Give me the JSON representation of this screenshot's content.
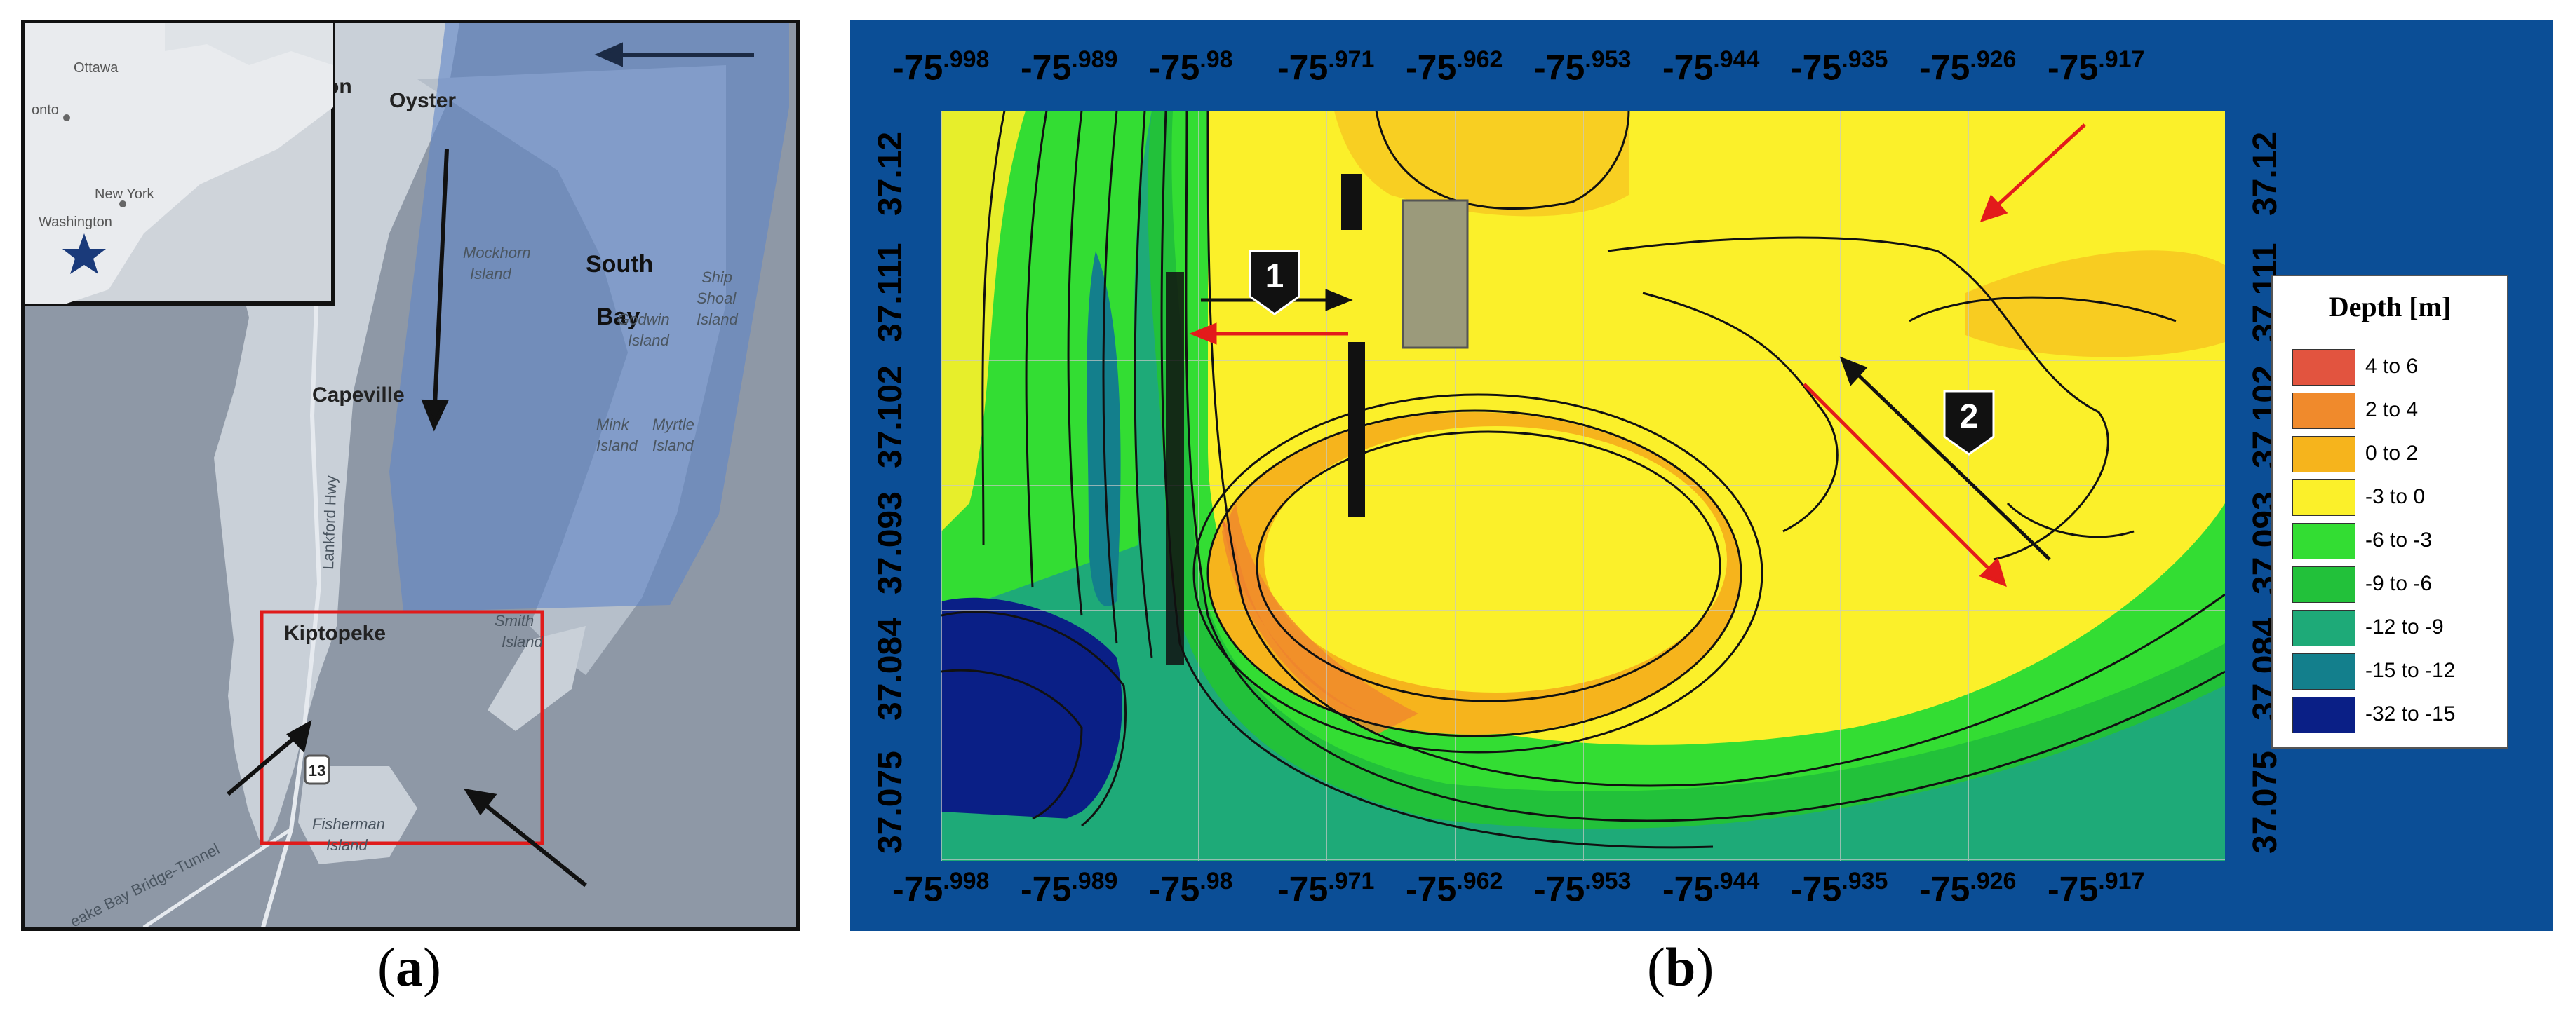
{
  "panel_a": {
    "caption_open": "(",
    "caption_letter": "a",
    "caption_close": ")",
    "place_labels": {
      "oyster": "Oyster",
      "on": "on",
      "south": "South",
      "bay": "Bay",
      "capeville": "Capeville",
      "kiptopeke": "Kiptopeke",
      "mockhorn": "Mockhorn",
      "island1": "Island",
      "ship": "Ship",
      "shoal": "Shoal",
      "island2": "Island",
      "godwin": "Godwin",
      "island3": "Island",
      "mink": "Mink",
      "island4": "Island",
      "myrtle": "Myrtle",
      "island5": "Island",
      "smith": "Smith",
      "island6": "Island",
      "fisherman": "Fisherman",
      "island7": "Island",
      "lankford": "Lankford Hwy",
      "bridge": "eake Bay Bridge-Tunnel",
      "route": "13"
    },
    "inset_labels": {
      "ottawa": "Ottawa",
      "onto": "onto",
      "new_york": "New York",
      "washington": "Washington"
    },
    "colors": {
      "land": "#c9d0d8",
      "water": "#8e98a6",
      "shade": "#5f86c8",
      "study_box": "#e01b1b"
    },
    "icons": [
      "star-icon",
      "arrow-icon"
    ]
  },
  "panel_b": {
    "caption_open": "(",
    "caption_letter": "b",
    "caption_close": ")",
    "x_ticks": [
      {
        "int": "-75",
        "dec": ".998"
      },
      {
        "int": "-75",
        "dec": ".989"
      },
      {
        "int": "-75",
        "dec": ".98"
      },
      {
        "int": "-75",
        "dec": ".971"
      },
      {
        "int": "-75",
        "dec": ".962"
      },
      {
        "int": "-75",
        "dec": ".953"
      },
      {
        "int": "-75",
        "dec": ".944"
      },
      {
        "int": "-75",
        "dec": ".935"
      },
      {
        "int": "-75",
        "dec": ".926"
      },
      {
        "int": "-75",
        "dec": ".917"
      }
    ],
    "y_ticks": [
      "37.12",
      "37.111",
      "37.102",
      "37.093",
      "37.084",
      "37.075"
    ],
    "markers": [
      "1",
      "2"
    ],
    "legend": {
      "title": "Depth [m]",
      "items": [
        {
          "label": "4 to 6",
          "color": "#e2543f"
        },
        {
          "label": "2 to 4",
          "color": "#f08a2c"
        },
        {
          "label": "0 to 2",
          "color": "#f6b41c"
        },
        {
          "label": "-3 to 0",
          "color": "#fbf02a"
        },
        {
          "label": "-6 to -3",
          "color": "#33dd33"
        },
        {
          "label": "-9 to -6",
          "color": "#22c13a"
        },
        {
          "label": "-12 to -9",
          "color": "#1eaa78"
        },
        {
          "label": "-15 to -12",
          "color": "#137f8c"
        },
        {
          "label": "-32 to -15",
          "color": "#0a1f86"
        }
      ]
    },
    "colors": {
      "frame": "#0b4e96",
      "red_arrow": "#e31b1b",
      "black_arrow": "#111111"
    }
  }
}
